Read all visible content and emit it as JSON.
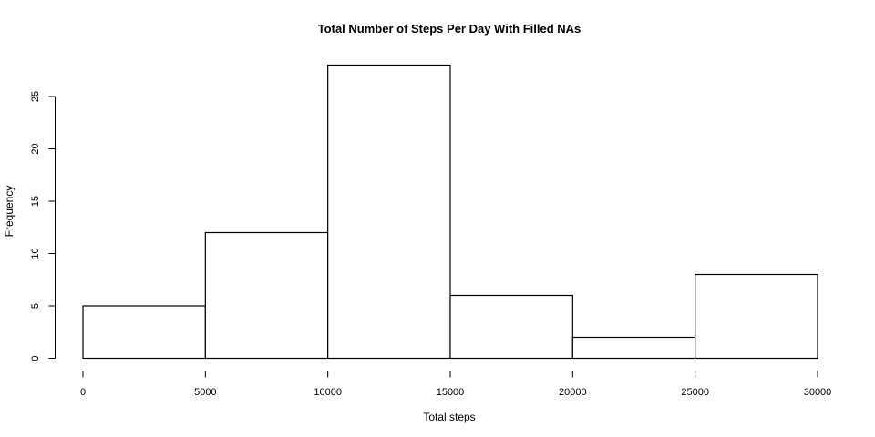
{
  "chart_data": {
    "type": "bar",
    "title": "Total Number of Steps Per Day With Filled NAs",
    "xlabel": "Total steps",
    "ylabel": "Frequency",
    "bins": [
      {
        "x0": 0,
        "x1": 5000,
        "count": 5
      },
      {
        "x0": 5000,
        "x1": 10000,
        "count": 12
      },
      {
        "x0": 10000,
        "x1": 15000,
        "count": 28
      },
      {
        "x0": 15000,
        "x1": 20000,
        "count": 6
      },
      {
        "x0": 20000,
        "x1": 25000,
        "count": 2
      },
      {
        "x0": 25000,
        "x1": 30000,
        "count": 8
      }
    ],
    "x_ticks": [
      0,
      5000,
      10000,
      15000,
      20000,
      25000,
      30000
    ],
    "y_ticks": [
      0,
      5,
      10,
      15,
      20,
      25
    ],
    "xlim": [
      0,
      30000
    ],
    "ylim": [
      0,
      28
    ],
    "grid": false,
    "legend": "none",
    "bar_fill": "#ffffff",
    "bar_stroke": "#000000"
  }
}
